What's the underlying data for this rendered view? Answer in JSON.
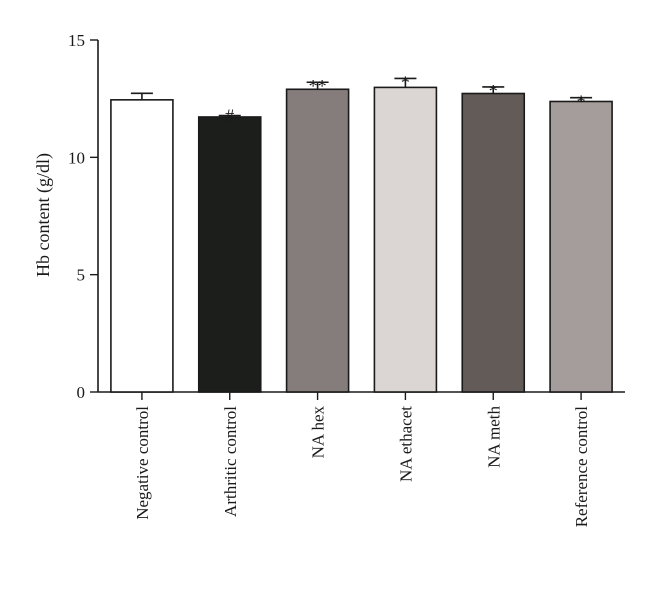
{
  "chart_data": {
    "type": "bar",
    "title": "",
    "xlabel": "",
    "ylabel": "Hb content (g/dl)",
    "ylim": [
      0,
      15
    ],
    "yticks": [
      0,
      5,
      10,
      15
    ],
    "grid": false,
    "categories": [
      "Negative control",
      "Arthritic control",
      "NA hex",
      "NA ethacet",
      "NA meth",
      "Reference control"
    ],
    "values": [
      12.45,
      11.72,
      12.9,
      12.98,
      12.72,
      12.38
    ],
    "errors": [
      0.28,
      0.06,
      0.3,
      0.38,
      0.28,
      0.16
    ],
    "significance": [
      "",
      "#",
      "**",
      "*",
      "*",
      "*"
    ],
    "bar_colors": [
      "#ffffff",
      "#1b1e1a",
      "#857d7c",
      "#dbd6d4",
      "#625b58",
      "#a59d9c"
    ]
  }
}
